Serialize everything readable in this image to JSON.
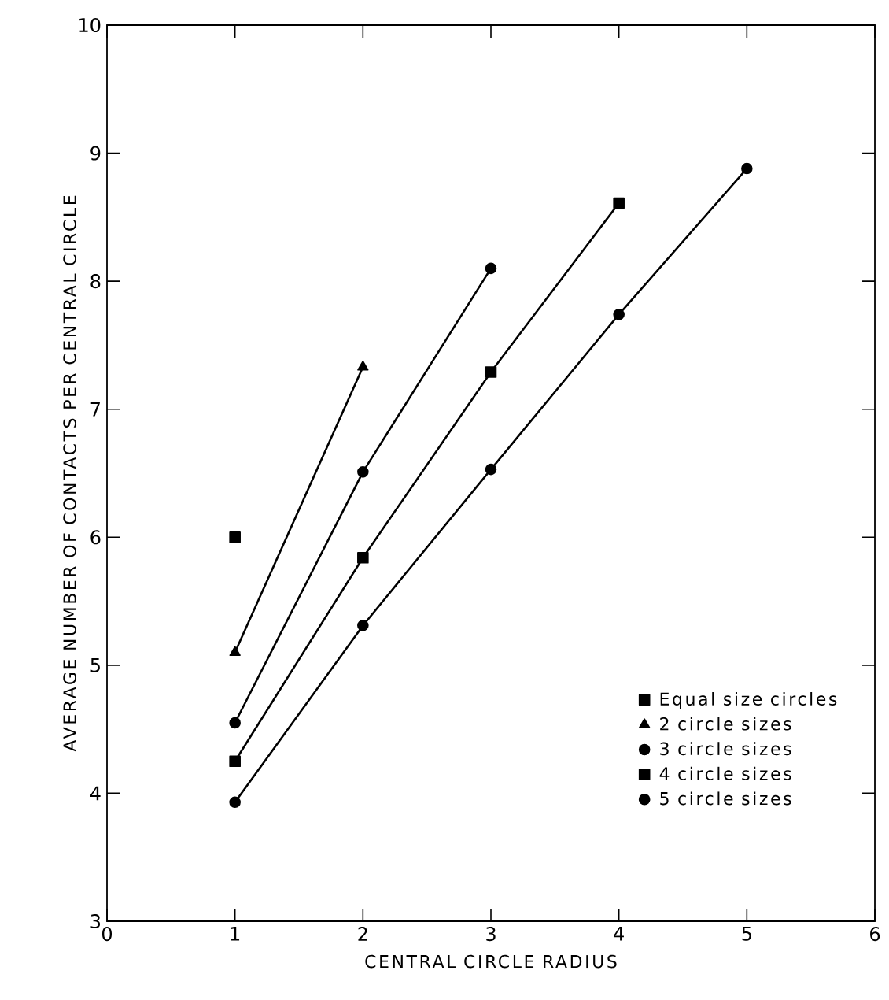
{
  "chart_data": {
    "type": "line",
    "xlabel": "CENTRAL CIRCLE RADIUS",
    "ylabel": "AVERAGE NUMBER OF CONTACTS PER CENTRAL CIRCLE",
    "xlim": [
      0,
      6
    ],
    "ylim": [
      3,
      10
    ],
    "xticks": [
      0,
      1,
      2,
      3,
      4,
      5,
      6
    ],
    "yticks": [
      3,
      4,
      5,
      6,
      7,
      8,
      9,
      10
    ],
    "grid": false,
    "legend": "bottom right",
    "line_style": "solid",
    "series": [
      {
        "name": "Equal size circles",
        "type": "scatter",
        "marker": "square",
        "color": "#000000",
        "x": [
          1
        ],
        "values": [
          6.0
        ]
      },
      {
        "name": "2 circle sizes",
        "marker": "triangle",
        "color": "#000000",
        "x": [
          1,
          2
        ],
        "values": [
          5.1,
          7.33
        ]
      },
      {
        "name": "3 circle sizes",
        "marker": "circle",
        "color": "#000000",
        "x": [
          1,
          2,
          3
        ],
        "values": [
          4.55,
          6.51,
          8.1
        ]
      },
      {
        "name": "4 circle sizes",
        "marker": "square",
        "color": "#000000",
        "x": [
          1,
          2,
          3,
          4
        ],
        "values": [
          4.25,
          5.84,
          7.29,
          8.61
        ]
      },
      {
        "name": "5 circle sizes",
        "marker": "circle",
        "color": "#000000",
        "x": [
          1,
          2,
          3,
          4,
          5
        ],
        "values": [
          3.93,
          5.31,
          6.53,
          7.74,
          8.88
        ]
      }
    ]
  }
}
